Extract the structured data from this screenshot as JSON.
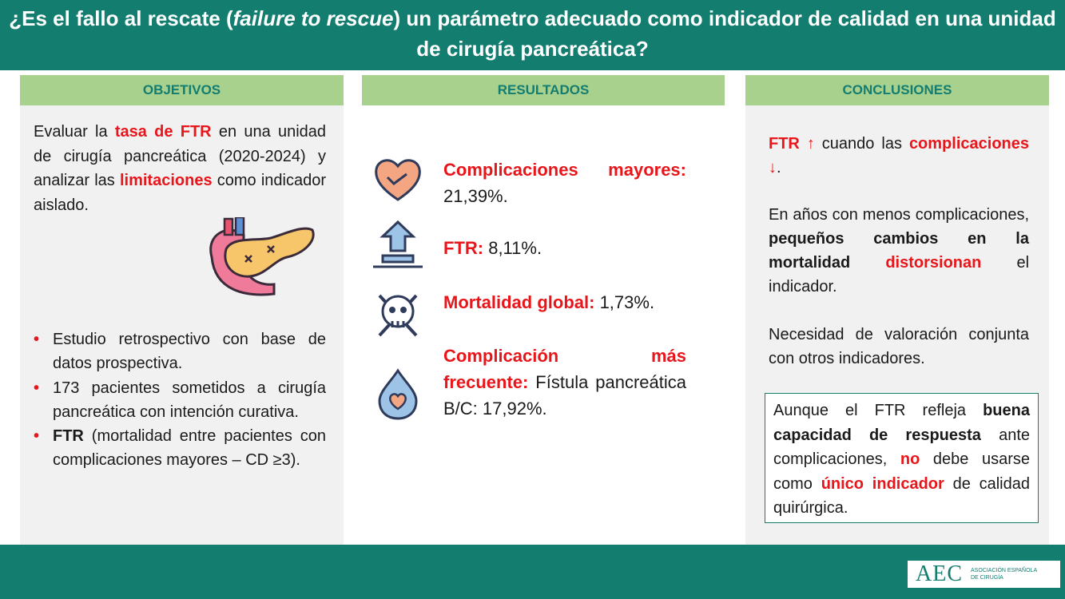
{
  "header": {
    "title_part1": "¿Es el fallo al rescate (",
    "title_italic": "failure to rescue",
    "title_part2": ") un parámetro adecuado como indicador de calidad en una unidad de cirugía pancreática?"
  },
  "objetivos": {
    "heading": "OBJETIVOS",
    "intro": [
      {
        "t": "Evaluar la ",
        "s": "plain"
      },
      {
        "t": "tasa de FTR",
        "s": "red"
      },
      {
        "t": " en una unidad de cirugía pancreática (2020-2024) y analizar las ",
        "s": "plain"
      },
      {
        "t": "limitaciones",
        "s": "red"
      },
      {
        "t": " como indicador aislado.",
        "s": "plain"
      }
    ],
    "bullet_mark": "•",
    "bullets": [
      [
        {
          "t": "Estudio retrospectivo con base de datos prospectiva.",
          "s": "plain"
        }
      ],
      [
        {
          "t": "173 pacientes sometidos a cirugía pancreática con intención curativa.",
          "s": "plain"
        }
      ],
      [
        {
          "t": "FTR",
          "s": "bold"
        },
        {
          "t": " (mortalidad entre pacientes con complicaciones mayores – CD ≥3).",
          "s": "plain"
        }
      ]
    ]
  },
  "resultados": {
    "heading": "RESULTADOS",
    "items": [
      {
        "icon": "heart-icon",
        "parts": [
          {
            "t": "Complicaciones mayores:",
            "s": "red"
          },
          {
            "t": " 21,39%.",
            "s": "plain"
          }
        ]
      },
      {
        "icon": "arrow-up-icon",
        "parts": [
          {
            "t": "FTR:",
            "s": "red"
          },
          {
            "t": " 8,11%.",
            "s": "plain"
          }
        ]
      },
      {
        "icon": "skull-icon",
        "parts": [
          {
            "t": "Mortalidad global:",
            "s": "red"
          },
          {
            "t": " 1,73%.",
            "s": "plain"
          }
        ]
      },
      {
        "icon": "drop-heart-icon",
        "parts": [
          {
            "t": "Complicación más frecuente:",
            "s": "red"
          },
          {
            "t": " Fístula pancreática B/C: 17,92%.",
            "s": "plain"
          }
        ]
      }
    ]
  },
  "conclusiones": {
    "heading": "CONCLUSIONES",
    "paragraphs": [
      [
        {
          "t": "FTR ↑",
          "s": "red"
        },
        {
          "t": " cuando las ",
          "s": "plain"
        },
        {
          "t": "complicaciones ↓",
          "s": "red"
        },
        {
          "t": ".",
          "s": "plain"
        }
      ],
      [
        {
          "t": "En años con menos complicaciones, ",
          "s": "plain"
        },
        {
          "t": "pequeños cambios en la mortalidad",
          "s": "bold"
        },
        {
          "t": " ",
          "s": "plain"
        },
        {
          "t": "distorsionan",
          "s": "red"
        },
        {
          "t": " el indicador.",
          "s": "plain"
        }
      ],
      [
        {
          "t": "Necesidad de valoración conjunta con otros indicadores.",
          "s": "plain"
        }
      ]
    ],
    "box": [
      {
        "t": "Aunque el FTR refleja ",
        "s": "plain"
      },
      {
        "t": "buena capacidad de respuesta",
        "s": "bold"
      },
      {
        "t": " ante complicaciones, ",
        "s": "plain"
      },
      {
        "t": "no",
        "s": "red"
      },
      {
        "t": " debe usarse como ",
        "s": "plain"
      },
      {
        "t": "único indicador",
        "s": "red"
      },
      {
        "t": " de calidad quirúrgica.",
        "s": "plain"
      }
    ]
  },
  "footer": {
    "logo_mark": "AEC",
    "logo_text_line1": "ASOCIACIÓN ESPAÑOLA",
    "logo_text_line2": "DE CIRUGÍA"
  },
  "colors": {
    "brand_teal": "#137d70",
    "heading_green": "#a9d18e",
    "highlight_red": "#e8161b",
    "panel_grey": "#f1f1f1",
    "icon_peach": "#f4a582",
    "icon_blue": "#9dc3e6"
  }
}
